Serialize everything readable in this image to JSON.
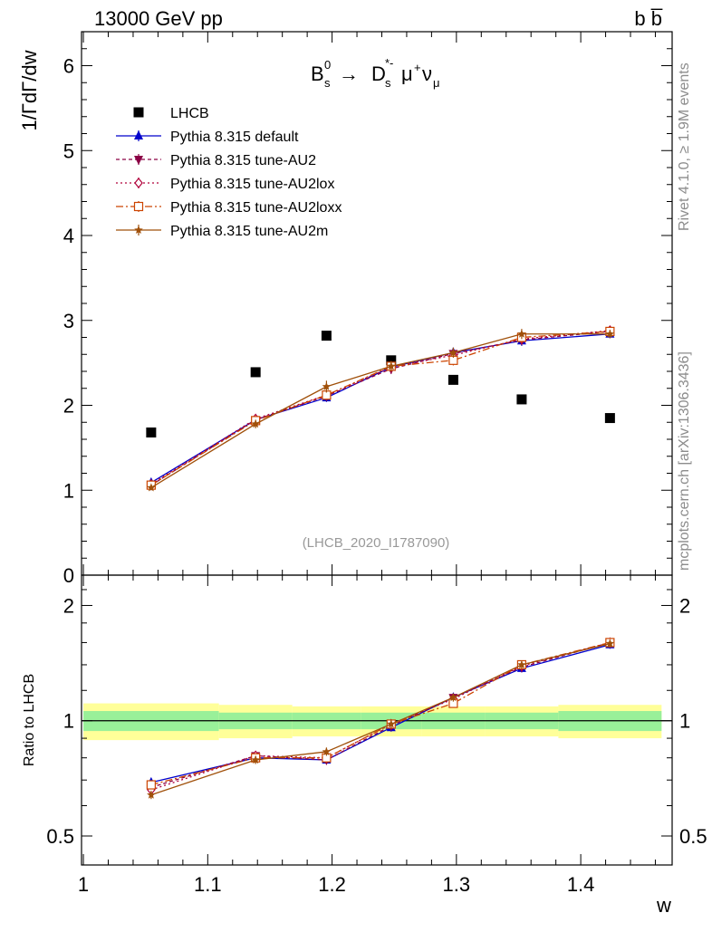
{
  "header": {
    "left": "13000 GeV pp",
    "right": "b b̅"
  },
  "side_text": {
    "version": "Rivet 4.1.0, ≥ 1.9M events",
    "source": "mcplots.cern.ch [arXiv:1306.3436]"
  },
  "analysis_tag": "(LHCB_2020_I1787090)",
  "process": {
    "initial": "B",
    "initial_sub": "s",
    "initial_sup": "0",
    "arrow": "→",
    "final": "D",
    "final_sub": "s",
    "final_sup": "*-",
    "mu": "μ",
    "mu_sup": "+",
    "nu": "ν",
    "nu_sub": "μ"
  },
  "colors": {
    "LHCB": "#000000",
    "default": "#0000cc",
    "AU2": "#8b0045",
    "AU2lox": "#b0003a",
    "AU2loxx": "#cc4400",
    "AU2m": "#a0500a",
    "band_inner": "#99f099",
    "band_outer": "#ffff99"
  },
  "chart_data": [
    {
      "type": "scatter",
      "panel": "main",
      "ylabel": "1/ΓdΓ/dw",
      "ylim": [
        0,
        6.4
      ],
      "yticks": [
        "0",
        "1",
        "2",
        "3",
        "4",
        "5",
        "6"
      ],
      "x": [
        1.0545,
        1.1385,
        1.1955,
        1.2475,
        1.2975,
        1.3525,
        1.4235
      ],
      "series": [
        {
          "name": "LHCB",
          "key": "LHCB",
          "marker": "square",
          "values": [
            1.68,
            2.39,
            2.82,
            2.53,
            2.3,
            2.07,
            1.85
          ]
        },
        {
          "name": "Pythia 8.315 default",
          "key": "default",
          "marker": "triangle-up",
          "dash": "",
          "values": [
            1.09,
            1.83,
            2.09,
            2.45,
            2.62,
            2.76,
            2.84
          ],
          "errors": [
            0.03,
            0.05,
            0.05,
            0.06,
            0.06,
            0.06,
            0.05
          ]
        },
        {
          "name": "Pythia 8.315 tune-AU2",
          "key": "AU2",
          "marker": "triangle-down",
          "dash": "4,3",
          "values": [
            1.06,
            1.83,
            2.11,
            2.43,
            2.61,
            2.77,
            2.87
          ],
          "errors": [
            0.03,
            0.05,
            0.05,
            0.06,
            0.06,
            0.06,
            0.05
          ]
        },
        {
          "name": "Pythia 8.315 tune-AU2lox",
          "key": "AU2lox",
          "marker": "diamond",
          "dash": "2,3",
          "values": [
            1.07,
            1.84,
            2.12,
            2.45,
            2.59,
            2.78,
            2.88
          ],
          "errors": [
            0.03,
            0.05,
            0.05,
            0.06,
            0.06,
            0.06,
            0.05
          ]
        },
        {
          "name": "Pythia 8.315 tune-AU2loxx",
          "key": "AU2loxx",
          "marker": "square-open",
          "dash": "8,3,2,3",
          "values": [
            1.06,
            1.82,
            2.12,
            2.46,
            2.53,
            2.8,
            2.87
          ],
          "errors": [
            0.03,
            0.05,
            0.05,
            0.06,
            0.06,
            0.06,
            0.05
          ]
        },
        {
          "name": "Pythia 8.315 tune-AU2m",
          "key": "AU2m",
          "marker": "star",
          "dash": "",
          "values": [
            1.03,
            1.78,
            2.22,
            2.46,
            2.62,
            2.84,
            2.84
          ],
          "errors": [
            0.03,
            0.05,
            0.07,
            0.06,
            0.06,
            0.06,
            0.05
          ]
        }
      ]
    },
    {
      "type": "line",
      "panel": "ratio",
      "ylabel": "Ratio to LHCB",
      "xlabel": "w",
      "scale": "log",
      "ylim": [
        0.42,
        2.4
      ],
      "yticks": [
        "0.5",
        "1",
        "2"
      ],
      "xlim": [
        0.9985,
        1.4735
      ],
      "xticks": [
        "1",
        "1.1",
        "1.2",
        "1.3",
        "1.4"
      ],
      "x": [
        1.0545,
        1.1385,
        1.1955,
        1.2475,
        1.2975,
        1.3525,
        1.4235
      ],
      "bins": [
        1.0,
        1.109,
        1.168,
        1.223,
        1.272,
        1.323,
        1.382,
        1.465
      ],
      "band_inner": [
        0.06,
        0.05,
        0.05,
        0.05,
        0.05,
        0.05,
        0.06
      ],
      "band_outer": [
        0.11,
        0.1,
        0.09,
        0.09,
        0.09,
        0.09,
        0.1
      ],
      "series": [
        {
          "name": "Pythia 8.315 default",
          "key": "default",
          "values": [
            0.69,
            0.8,
            0.79,
            0.96,
            1.15,
            1.37,
            1.58
          ]
        },
        {
          "name": "Pythia 8.315 tune-AU2",
          "key": "AU2",
          "values": [
            0.67,
            0.81,
            0.79,
            0.97,
            1.15,
            1.38,
            1.6
          ]
        },
        {
          "name": "Pythia 8.315 tune-AU2lox",
          "key": "AU2lox",
          "values": [
            0.66,
            0.81,
            0.8,
            0.98,
            1.14,
            1.39,
            1.6
          ]
        },
        {
          "name": "Pythia 8.315 tune-AU2loxx",
          "key": "AU2loxx",
          "values": [
            0.68,
            0.8,
            0.8,
            0.98,
            1.11,
            1.4,
            1.6
          ]
        },
        {
          "name": "Pythia 8.315 tune-AU2m",
          "key": "AU2m",
          "values": [
            0.64,
            0.79,
            0.83,
            0.98,
            1.15,
            1.4,
            1.59
          ]
        }
      ]
    }
  ]
}
